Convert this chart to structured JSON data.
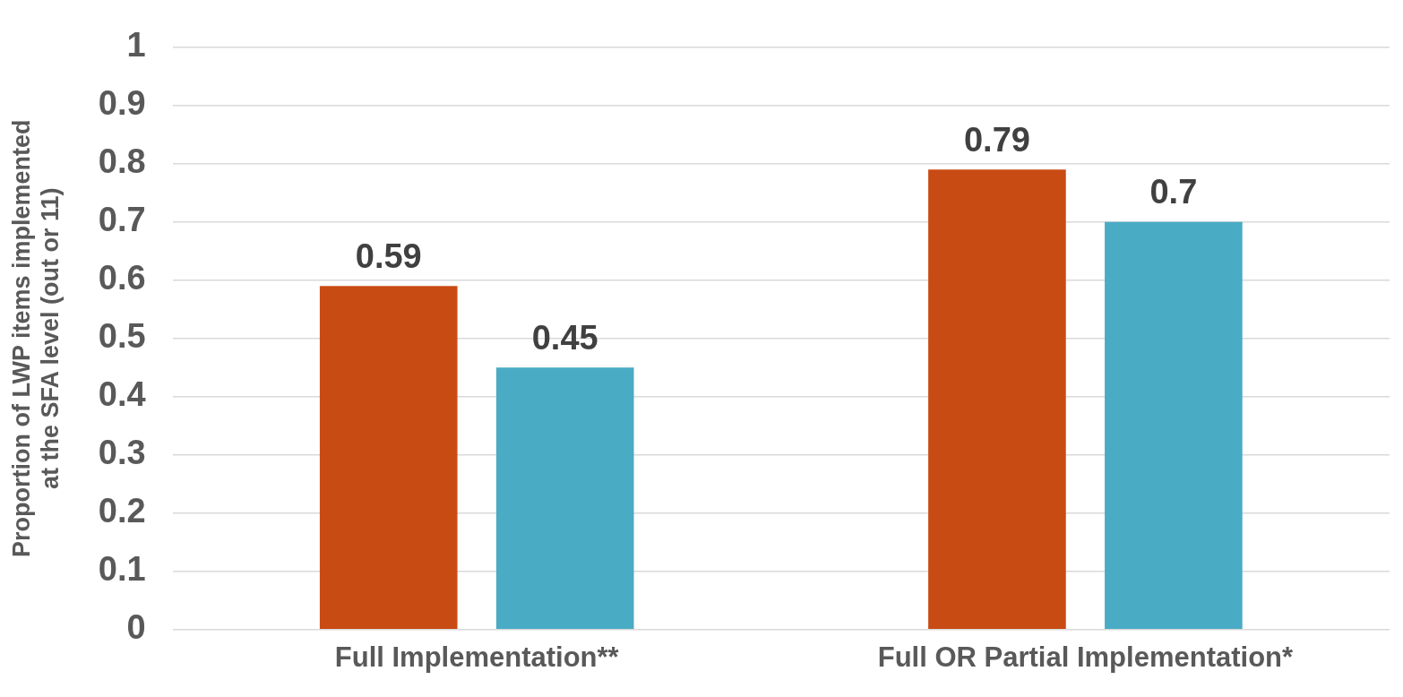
{
  "chart_data": {
    "type": "bar",
    "ylabel": "Proportion of LWP items implemented\nat the SFA level (out or 11)",
    "categories": [
      "Full Implementation**",
      "Full OR Partial Implementation*"
    ],
    "series": [
      {
        "color": "#c94b14",
        "values": [
          0.59,
          0.79
        ]
      },
      {
        "color": "#4aabc5",
        "values": [
          0.45,
          0.7
        ]
      }
    ],
    "ylim": [
      0,
      1
    ],
    "yticks": [
      0,
      0.1,
      0.2,
      0.3,
      0.4,
      0.5,
      0.6,
      0.7,
      0.8,
      0.9,
      1
    ],
    "grid": "y",
    "legend": false,
    "data_labels": true
  }
}
